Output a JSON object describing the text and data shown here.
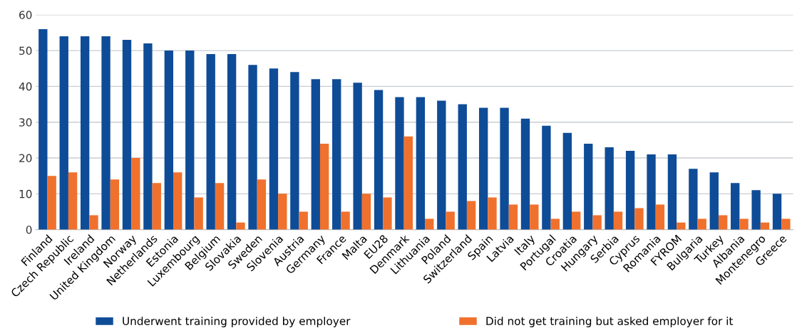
{
  "chart_data": {
    "type": "bar",
    "categories": [
      "Finland",
      "Czech Republic",
      "Ireland",
      "United Kingdom",
      "Norway",
      "Netherlands",
      "Estonia",
      "Luxembourg",
      "Belgium",
      "Slovakia",
      "Sweden",
      "Slovenia",
      "Austria",
      "Germany",
      "France",
      "Malta",
      "EU28",
      "Denmark",
      "Lithuania",
      "Poland",
      "Switzerland",
      "Spain",
      "Latvia",
      "Italy",
      "Portugal",
      "Croatia",
      "Hungary",
      "Serbia",
      "Cyprus",
      "Romania",
      "FYROM",
      "Bulgaria",
      "Turkey",
      "Albania",
      "Montenegro",
      "Greece"
    ],
    "series": [
      {
        "name": "Underwent training provided by employer",
        "color": "#0f4c97",
        "values": [
          56,
          54,
          54,
          54,
          53,
          52,
          50,
          50,
          49,
          49,
          46,
          45,
          44,
          42,
          42,
          41,
          39,
          37,
          37,
          36,
          35,
          34,
          34,
          31,
          29,
          27,
          24,
          23,
          22,
          21,
          21,
          17,
          16,
          13,
          11,
          10
        ]
      },
      {
        "name": "Did not get training but asked employer for it",
        "color": "#f0712d",
        "values": [
          15,
          16,
          4,
          14,
          20,
          13,
          16,
          9,
          13,
          2,
          14,
          10,
          5,
          24,
          5,
          10,
          9,
          26,
          3,
          5,
          8,
          9,
          7,
          7,
          3,
          5,
          4,
          5,
          6,
          7,
          2,
          3,
          4,
          3,
          2,
          3
        ]
      }
    ],
    "ylim": [
      0,
      60
    ],
    "yticks": [
      0,
      10,
      20,
      30,
      40,
      50,
      60
    ],
    "grid": "y",
    "legend": "bottom"
  }
}
